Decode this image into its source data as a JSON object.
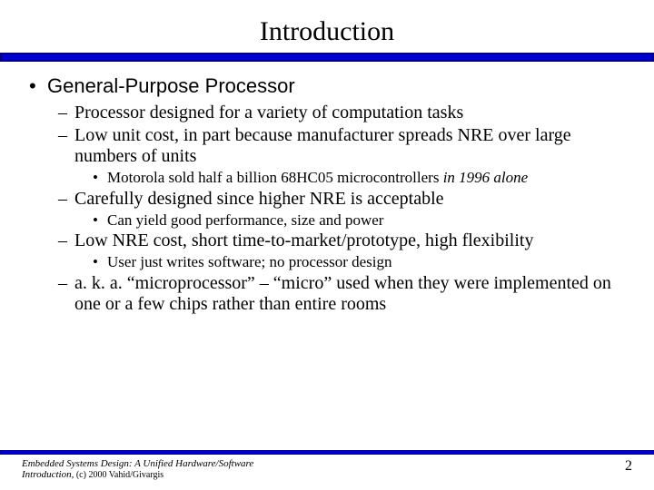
{
  "title": "Introduction",
  "colors": {
    "rule_outer": "#000080",
    "rule_inner": "#0000cc",
    "text": "#000000",
    "background": "#ffffff"
  },
  "bullets": {
    "l1": "General-Purpose Processor",
    "l2_a": "Processor designed for a variety of computation tasks",
    "l2_b": "Low unit cost, in part because manufacturer spreads NRE over large numbers of units",
    "l3_b1_pre": "Motorola sold half a billion 68HC05 microcontrollers ",
    "l3_b1_ital": "in 1996 alone",
    "l2_c": "Carefully designed since higher NRE is acceptable",
    "l3_c1": "Can yield good performance, size and power",
    "l2_d": "Low NRE cost, short time-to-market/prototype, high flexibility",
    "l3_d1": "User just writes software; no processor design",
    "l2_e": "a. k. a. “microprocessor” – “micro” used when they were implemented on one or a few chips rather than entire rooms"
  },
  "footer": {
    "book": "Embedded Systems Design: A Unified Hardware/Software Introduction,",
    "copy": " (c) 2000 Vahid/Givargis",
    "page": "2"
  }
}
